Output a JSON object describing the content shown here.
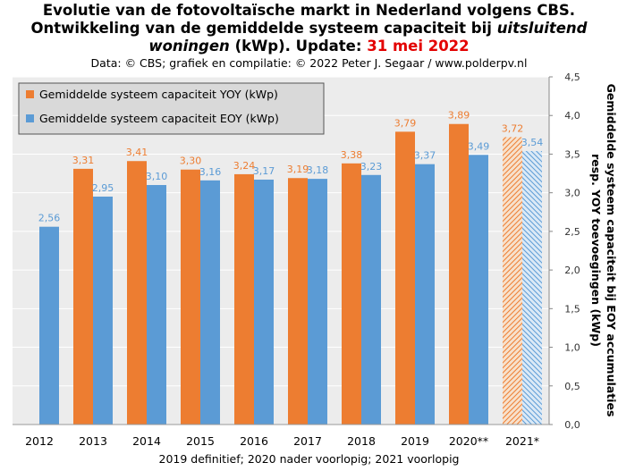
{
  "header": {
    "title_line1": "Evolutie van de fotovoltaïsche markt in Nederland volgens CBS.",
    "title_line2": "Ontwikkeling van de gemiddelde systeem capaciteit bij",
    "title_line2_italic": "uitsluitend",
    "title_line3_italic": "woningen",
    "title_line3_mid": "(kWp). Update:",
    "title_line3_date": "31 mei 2022",
    "credits": "Data: © CBS; grafiek en compilatie: © 2022 Peter J. Segaar / www.polderpv.nl"
  },
  "footnote": "2019 definitief; 2020 nader voorlopig; 2021 voorlopig",
  "colors": {
    "yoy": "#ed7d31",
    "eoy": "#5b9bd5",
    "plot_bg": "#ececec",
    "legend_bg": "#d9d9d9",
    "gridline": "#ffffff"
  },
  "chart_data": {
    "type": "bar",
    "categories": [
      "2012",
      "2013",
      "2014",
      "2015",
      "2016",
      "2017",
      "2018",
      "2019",
      "2020**",
      "2021*"
    ],
    "series": [
      {
        "name": "Gemiddelde systeem capaciteit YOY (kWp)",
        "values": [
          null,
          3.31,
          3.41,
          3.3,
          3.24,
          3.19,
          3.38,
          3.79,
          3.89,
          3.72
        ],
        "labels": [
          "",
          "3,31",
          "3,41",
          "3,30",
          "3,24",
          "3,19",
          "3,38",
          "3,79",
          "3,89",
          "3,72"
        ],
        "color": "#ed7d31"
      },
      {
        "name": "Gemiddelde systeem capaciteit EOY (kWp)",
        "values": [
          2.56,
          2.95,
          3.1,
          3.16,
          3.17,
          3.18,
          3.23,
          3.37,
          3.49,
          3.54
        ],
        "labels": [
          "2,56",
          "2,95",
          "3,10",
          "3,16",
          "3,17",
          "3,18",
          "3,23",
          "3,37",
          "3,49",
          "3,54"
        ],
        "color": "#5b9bd5"
      }
    ],
    "hatched_category": "2021*",
    "ylabel_line1": "Gemiddelde systeem capaciteit bij EOY accumulaties",
    "ylabel_line2": "resp. YOY toevoegingen (kWp)",
    "ylim": [
      0,
      4.5
    ],
    "yticks": [
      "0,0",
      "0,5",
      "1,0",
      "1,5",
      "2,0",
      "2,5",
      "3,0",
      "3,5",
      "4,0",
      "4,5"
    ],
    "y_axis_side": "right",
    "grid": true,
    "legend_position": "top-left"
  }
}
